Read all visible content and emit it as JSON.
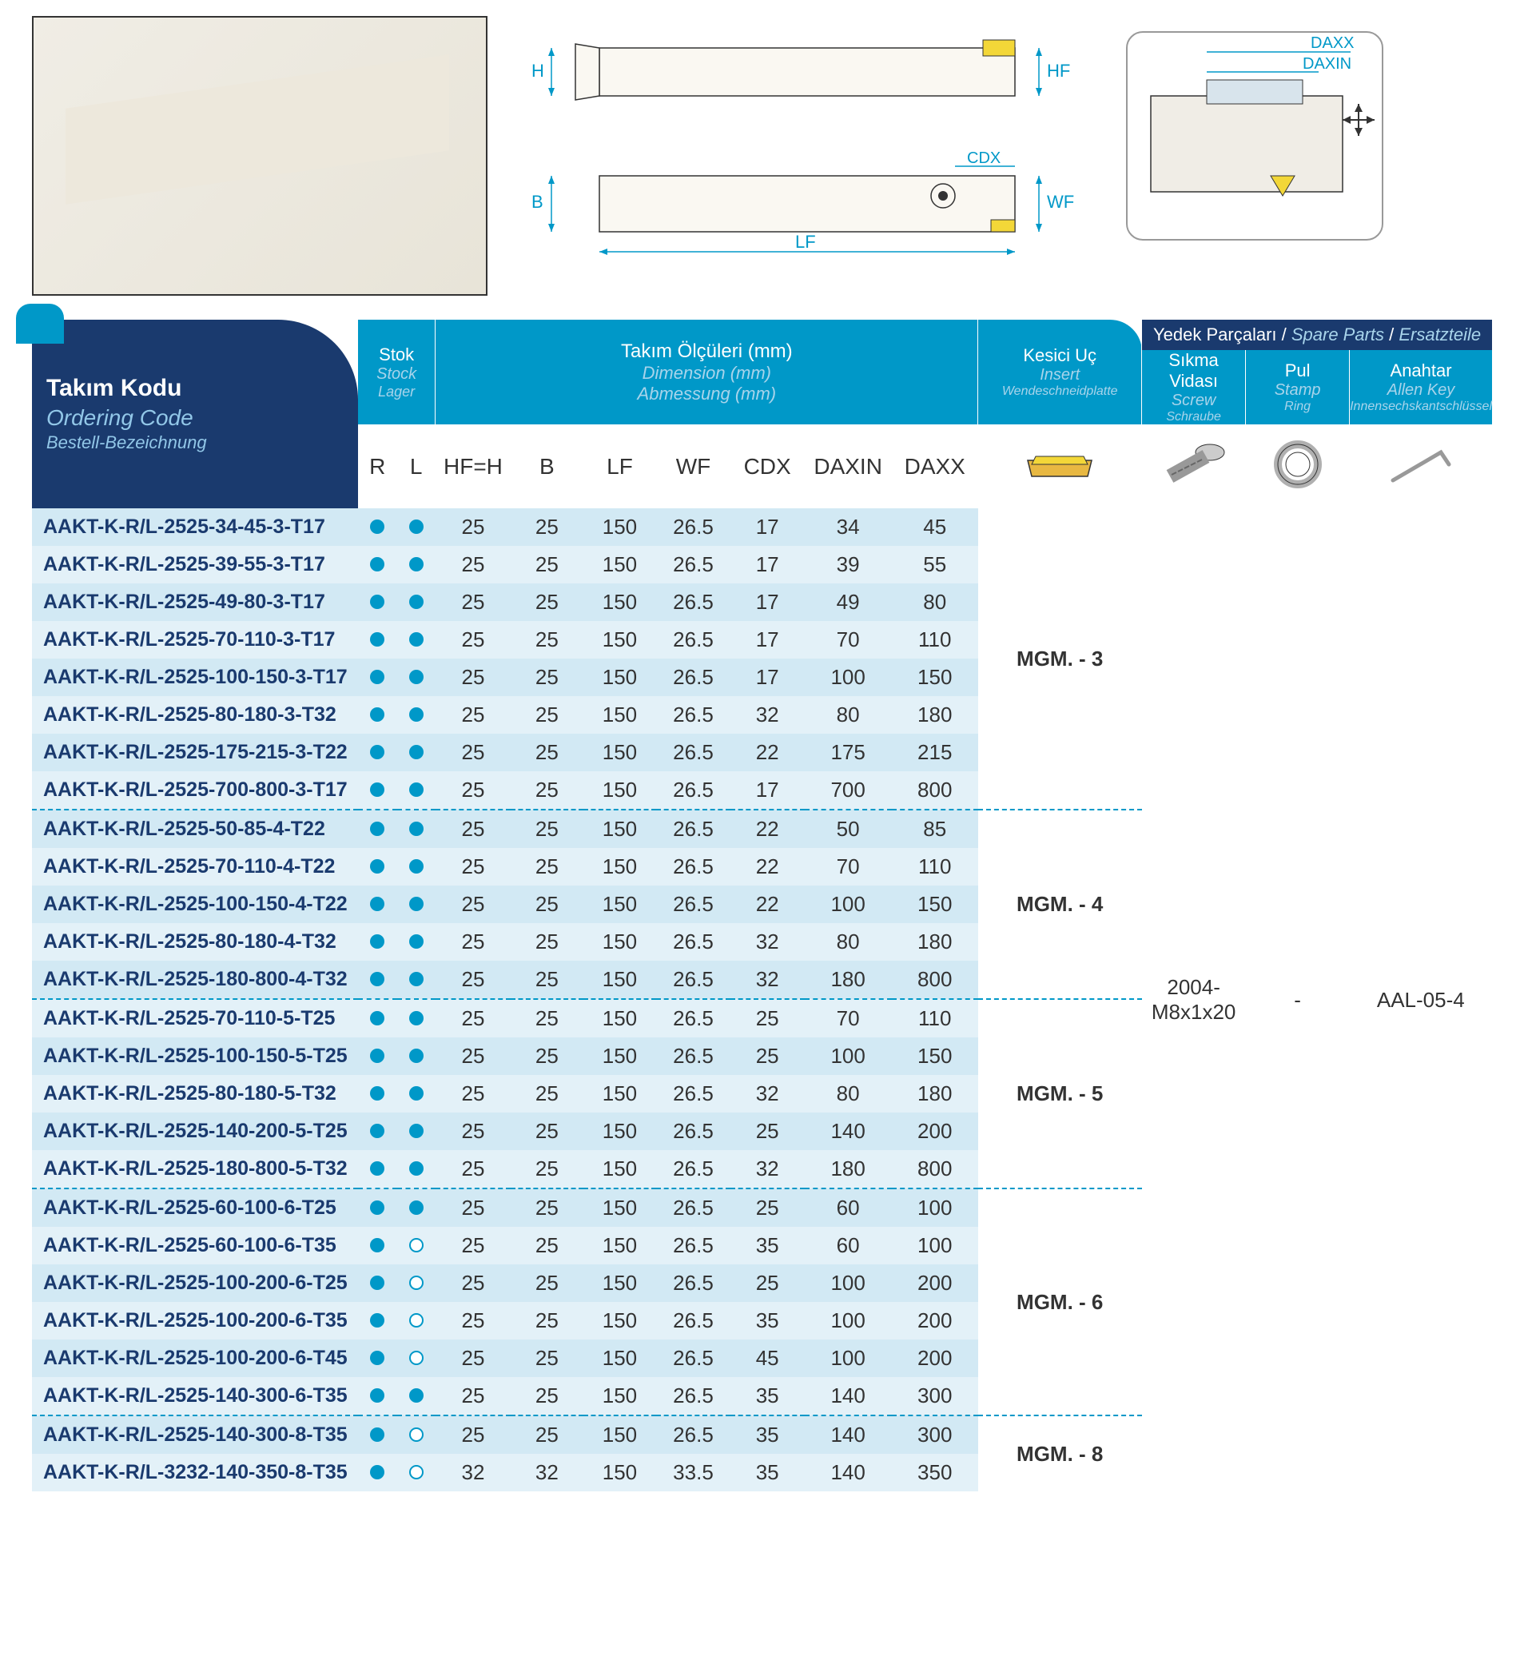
{
  "headers": {
    "ordering": {
      "t1": "Takım Kodu",
      "t2": "Ordering Code",
      "t3": "Bestell-Bezeichnung"
    },
    "stock": {
      "t1": "Stok",
      "t2": "Stock",
      "t3": "Lager"
    },
    "dimensions": {
      "t1": "Takım Ölçüleri (mm)",
      "t2": "Dimension (mm)",
      "t3": "Abmessung (mm)"
    },
    "insert": {
      "t1": "Kesici Uç",
      "t2": "Insert",
      "t3": "Wendeschneidplatte"
    },
    "spare_parts": {
      "t1": "Yedek Parçaları",
      "t2": "Spare Parts",
      "t3": "Ersatzteile"
    },
    "screw": {
      "t1": "Sıkma Vidası",
      "t2": "Screw",
      "t3": "Schraube"
    },
    "ring": {
      "t1": "Pul",
      "t2": "Stamp",
      "t3": "Ring"
    },
    "key": {
      "t1": "Anahtar",
      "t2": "Allen Key",
      "t3": "Innensechskantschlüssel"
    }
  },
  "cols": {
    "R": "R",
    "L": "L",
    "HF": "HF=H",
    "B": "B",
    "LF": "LF",
    "WF": "WF",
    "CDX": "CDX",
    "DAXIN": "DAXIN",
    "DAXX": "DAXX"
  },
  "diagram_labels": {
    "H": "H",
    "B": "B",
    "LF": "LF",
    "HF": "HF",
    "WF": "WF",
    "CDX": "CDX",
    "DAXX": "DAXX",
    "DAXIN": "DAXIN"
  },
  "spare_values": {
    "screw": "2004-M8x1x20",
    "ring": "-",
    "key": "AAL-05-4"
  },
  "groups": [
    {
      "insert": "MGM. - 3",
      "rows": [
        {
          "code": "AAKT-K-R/L-2525-34-45-3-T17",
          "R": 1,
          "L": 1,
          "HF": "25",
          "B": "25",
          "LF": "150",
          "WF": "26.5",
          "CDX": "17",
          "DAXIN": "34",
          "DAXX": "45"
        },
        {
          "code": "AAKT-K-R/L-2525-39-55-3-T17",
          "R": 1,
          "L": 1,
          "HF": "25",
          "B": "25",
          "LF": "150",
          "WF": "26.5",
          "CDX": "17",
          "DAXIN": "39",
          "DAXX": "55"
        },
        {
          "code": "AAKT-K-R/L-2525-49-80-3-T17",
          "R": 1,
          "L": 1,
          "HF": "25",
          "B": "25",
          "LF": "150",
          "WF": "26.5",
          "CDX": "17",
          "DAXIN": "49",
          "DAXX": "80"
        },
        {
          "code": "AAKT-K-R/L-2525-70-110-3-T17",
          "R": 1,
          "L": 1,
          "HF": "25",
          "B": "25",
          "LF": "150",
          "WF": "26.5",
          "CDX": "17",
          "DAXIN": "70",
          "DAXX": "110"
        },
        {
          "code": "AAKT-K-R/L-2525-100-150-3-T17",
          "R": 1,
          "L": 1,
          "HF": "25",
          "B": "25",
          "LF": "150",
          "WF": "26.5",
          "CDX": "17",
          "DAXIN": "100",
          "DAXX": "150"
        },
        {
          "code": "AAKT-K-R/L-2525-80-180-3-T32",
          "R": 1,
          "L": 1,
          "HF": "25",
          "B": "25",
          "LF": "150",
          "WF": "26.5",
          "CDX": "32",
          "DAXIN": "80",
          "DAXX": "180"
        },
        {
          "code": "AAKT-K-R/L-2525-175-215-3-T22",
          "R": 1,
          "L": 1,
          "HF": "25",
          "B": "25",
          "LF": "150",
          "WF": "26.5",
          "CDX": "22",
          "DAXIN": "175",
          "DAXX": "215"
        },
        {
          "code": "AAKT-K-R/L-2525-700-800-3-T17",
          "R": 1,
          "L": 1,
          "HF": "25",
          "B": "25",
          "LF": "150",
          "WF": "26.5",
          "CDX": "17",
          "DAXIN": "700",
          "DAXX": "800"
        }
      ]
    },
    {
      "insert": "MGM. - 4",
      "rows": [
        {
          "code": "AAKT-K-R/L-2525-50-85-4-T22",
          "R": 1,
          "L": 1,
          "HF": "25",
          "B": "25",
          "LF": "150",
          "WF": "26.5",
          "CDX": "22",
          "DAXIN": "50",
          "DAXX": "85"
        },
        {
          "code": "AAKT-K-R/L-2525-70-110-4-T22",
          "R": 1,
          "L": 1,
          "HF": "25",
          "B": "25",
          "LF": "150",
          "WF": "26.5",
          "CDX": "22",
          "DAXIN": "70",
          "DAXX": "110"
        },
        {
          "code": "AAKT-K-R/L-2525-100-150-4-T22",
          "R": 1,
          "L": 1,
          "HF": "25",
          "B": "25",
          "LF": "150",
          "WF": "26.5",
          "CDX": "22",
          "DAXIN": "100",
          "DAXX": "150"
        },
        {
          "code": "AAKT-K-R/L-2525-80-180-4-T32",
          "R": 1,
          "L": 1,
          "HF": "25",
          "B": "25",
          "LF": "150",
          "WF": "26.5",
          "CDX": "32",
          "DAXIN": "80",
          "DAXX": "180"
        },
        {
          "code": "AAKT-K-R/L-2525-180-800-4-T32",
          "R": 1,
          "L": 1,
          "HF": "25",
          "B": "25",
          "LF": "150",
          "WF": "26.5",
          "CDX": "32",
          "DAXIN": "180",
          "DAXX": "800"
        }
      ]
    },
    {
      "insert": "MGM. - 5",
      "rows": [
        {
          "code": "AAKT-K-R/L-2525-70-110-5-T25",
          "R": 1,
          "L": 1,
          "HF": "25",
          "B": "25",
          "LF": "150",
          "WF": "26.5",
          "CDX": "25",
          "DAXIN": "70",
          "DAXX": "110"
        },
        {
          "code": "AAKT-K-R/L-2525-100-150-5-T25",
          "R": 1,
          "L": 1,
          "HF": "25",
          "B": "25",
          "LF": "150",
          "WF": "26.5",
          "CDX": "25",
          "DAXIN": "100",
          "DAXX": "150"
        },
        {
          "code": "AAKT-K-R/L-2525-80-180-5-T32",
          "R": 1,
          "L": 1,
          "HF": "25",
          "B": "25",
          "LF": "150",
          "WF": "26.5",
          "CDX": "32",
          "DAXIN": "80",
          "DAXX": "180"
        },
        {
          "code": "AAKT-K-R/L-2525-140-200-5-T25",
          "R": 1,
          "L": 1,
          "HF": "25",
          "B": "25",
          "LF": "150",
          "WF": "26.5",
          "CDX": "25",
          "DAXIN": "140",
          "DAXX": "200"
        },
        {
          "code": "AAKT-K-R/L-2525-180-800-5-T32",
          "R": 1,
          "L": 1,
          "HF": "25",
          "B": "25",
          "LF": "150",
          "WF": "26.5",
          "CDX": "32",
          "DAXIN": "180",
          "DAXX": "800"
        }
      ]
    },
    {
      "insert": "MGM. - 6",
      "rows": [
        {
          "code": "AAKT-K-R/L-2525-60-100-6-T25",
          "R": 1,
          "L": 1,
          "HF": "25",
          "B": "25",
          "LF": "150",
          "WF": "26.5",
          "CDX": "25",
          "DAXIN": "60",
          "DAXX": "100"
        },
        {
          "code": "AAKT-K-R/L-2525-60-100-6-T35",
          "R": 1,
          "L": 0,
          "HF": "25",
          "B": "25",
          "LF": "150",
          "WF": "26.5",
          "CDX": "35",
          "DAXIN": "60",
          "DAXX": "100"
        },
        {
          "code": "AAKT-K-R/L-2525-100-200-6-T25",
          "R": 1,
          "L": 0,
          "HF": "25",
          "B": "25",
          "LF": "150",
          "WF": "26.5",
          "CDX": "25",
          "DAXIN": "100",
          "DAXX": "200"
        },
        {
          "code": "AAKT-K-R/L-2525-100-200-6-T35",
          "R": 1,
          "L": 0,
          "HF": "25",
          "B": "25",
          "LF": "150",
          "WF": "26.5",
          "CDX": "35",
          "DAXIN": "100",
          "DAXX": "200"
        },
        {
          "code": "AAKT-K-R/L-2525-100-200-6-T45",
          "R": 1,
          "L": 0,
          "HF": "25",
          "B": "25",
          "LF": "150",
          "WF": "26.5",
          "CDX": "45",
          "DAXIN": "100",
          "DAXX": "200"
        },
        {
          "code": "AAKT-K-R/L-2525-140-300-6-T35",
          "R": 1,
          "L": 1,
          "HF": "25",
          "B": "25",
          "LF": "150",
          "WF": "26.5",
          "CDX": "35",
          "DAXIN": "140",
          "DAXX": "300"
        }
      ]
    },
    {
      "insert": "MGM. - 8",
      "rows": [
        {
          "code": "AAKT-K-R/L-2525-140-300-8-T35",
          "R": 1,
          "L": 0,
          "HF": "25",
          "B": "25",
          "LF": "150",
          "WF": "26.5",
          "CDX": "35",
          "DAXIN": "140",
          "DAXX": "300"
        },
        {
          "code": "AAKT-K-R/L-3232-140-350-8-T35",
          "R": 1,
          "L": 0,
          "HF": "32",
          "B": "32",
          "LF": "150",
          "WF": "33.5",
          "CDX": "35",
          "DAXIN": "140",
          "DAXX": "350"
        }
      ]
    }
  ],
  "colors": {
    "cyan": "#0098c8",
    "navy": "#1a3a6e",
    "row_odd": "#d2e9f4",
    "row_even": "#e3f1f8",
    "text": "#333333",
    "light_label": "#a8d4eb"
  }
}
